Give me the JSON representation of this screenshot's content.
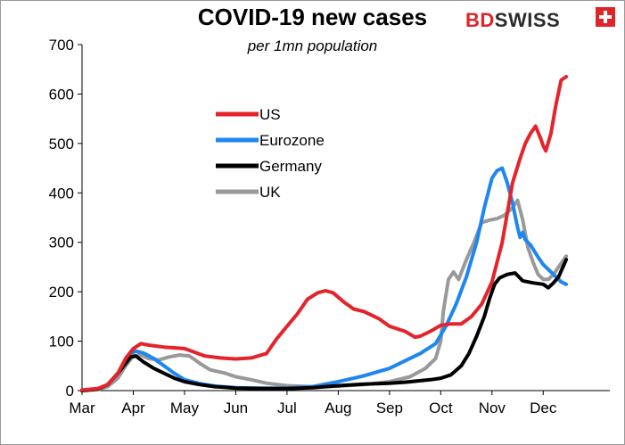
{
  "header": {
    "title": "COVID-19 new cases",
    "subtitle": "per 1mn population",
    "logo_text_1": "BD",
    "logo_text_2": "SWISS",
    "logo_mark": "swiss-cross-icon"
  },
  "colors": {
    "US": "#e4232b",
    "Eurozone": "#1d86f0",
    "Germany": "#000000",
    "UK": "#999999"
  },
  "chart_data": {
    "type": "line",
    "title": "COVID-19 new cases",
    "subtitle": "per 1mn population",
    "xlabel": "",
    "ylabel": "",
    "ylim": [
      0,
      700
    ],
    "yticks": [
      0,
      100,
      200,
      300,
      400,
      500,
      600,
      700
    ],
    "xlim": [
      0,
      10.3
    ],
    "xticks": [
      {
        "label": "Mar",
        "x": 0
      },
      {
        "label": "Apr",
        "x": 1
      },
      {
        "label": "May",
        "x": 2
      },
      {
        "label": "Jun",
        "x": 3
      },
      {
        "label": "Jul",
        "x": 4
      },
      {
        "label": "Aug",
        "x": 5
      },
      {
        "label": "Sep",
        "x": 6
      },
      {
        "label": "Oct",
        "x": 7
      },
      {
        "label": "Nov",
        "x": 8
      },
      {
        "label": "Dec",
        "x": 9
      }
    ],
    "grid": false,
    "legend": "upper-left",
    "series": [
      {
        "name": "US",
        "color": "#e4232b",
        "x": [
          0,
          0.3,
          0.5,
          0.7,
          0.85,
          1.0,
          1.15,
          1.3,
          1.6,
          2.0,
          2.4,
          2.7,
          3.0,
          3.3,
          3.6,
          3.8,
          4.0,
          4.2,
          4.4,
          4.6,
          4.75,
          4.9,
          5.1,
          5.3,
          5.5,
          5.8,
          6.0,
          6.3,
          6.5,
          6.6,
          6.8,
          7.0,
          7.2,
          7.4,
          7.6,
          7.8,
          8.0,
          8.2,
          8.4,
          8.55,
          8.65,
          8.75,
          8.85,
          8.95,
          9.0,
          9.05,
          9.15,
          9.25,
          9.35,
          9.45
        ],
        "y": [
          1,
          4,
          12,
          35,
          65,
          85,
          95,
          92,
          88,
          85,
          70,
          66,
          64,
          66,
          75,
          105,
          130,
          155,
          185,
          198,
          202,
          198,
          180,
          165,
          160,
          145,
          130,
          120,
          108,
          110,
          120,
          132,
          135,
          135,
          150,
          175,
          220,
          300,
          420,
          470,
          500,
          520,
          535,
          510,
          495,
          485,
          520,
          580,
          628,
          635
        ]
      },
      {
        "name": "Eurozone",
        "color": "#1d86f0",
        "x": [
          0,
          0.3,
          0.5,
          0.7,
          0.85,
          0.95,
          1.05,
          1.2,
          1.4,
          1.6,
          1.8,
          2.0,
          2.3,
          2.6,
          3.0,
          3.5,
          4.0,
          4.5,
          5.0,
          5.5,
          6.0,
          6.3,
          6.6,
          6.9,
          7.1,
          7.3,
          7.5,
          7.7,
          7.85,
          8.0,
          8.1,
          8.2,
          8.3,
          8.4,
          8.5,
          8.55,
          8.6,
          8.65,
          8.75,
          8.9,
          9.0,
          9.1,
          9.2,
          9.35,
          9.45
        ],
        "y": [
          0,
          3,
          12,
          35,
          60,
          75,
          80,
          76,
          65,
          50,
          35,
          22,
          14,
          9,
          6,
          5,
          5,
          8,
          18,
          30,
          45,
          60,
          75,
          95,
          130,
          175,
          230,
          300,
          370,
          430,
          445,
          450,
          420,
          380,
          330,
          310,
          320,
          305,
          295,
          270,
          255,
          245,
          235,
          220,
          215
        ]
      },
      {
        "name": "Germany",
        "color": "#000000",
        "x": [
          0,
          0.3,
          0.5,
          0.7,
          0.85,
          0.95,
          1.05,
          1.2,
          1.4,
          1.6,
          1.8,
          2.0,
          2.3,
          2.6,
          3.0,
          3.5,
          4.0,
          4.5,
          5.0,
          5.5,
          6.0,
          6.3,
          6.6,
          6.8,
          7.0,
          7.2,
          7.4,
          7.55,
          7.7,
          7.85,
          7.95,
          8.05,
          8.15,
          8.3,
          8.45,
          8.6,
          8.8,
          9.0,
          9.1,
          9.2,
          9.3,
          9.45
        ],
        "y": [
          0,
          3,
          12,
          35,
          55,
          68,
          70,
          58,
          45,
          35,
          25,
          18,
          12,
          8,
          5,
          4,
          4,
          6,
          10,
          13,
          15,
          17,
          20,
          22,
          25,
          32,
          50,
          75,
          110,
          150,
          185,
          215,
          228,
          235,
          238,
          222,
          218,
          215,
          208,
          218,
          230,
          265
        ]
      },
      {
        "name": "UK",
        "color": "#999999",
        "x": [
          0,
          0.3,
          0.5,
          0.7,
          0.85,
          1.0,
          1.15,
          1.3,
          1.5,
          1.7,
          1.9,
          2.1,
          2.3,
          2.5,
          2.8,
          3.0,
          3.3,
          3.6,
          4.0,
          4.5,
          5.0,
          5.5,
          6.0,
          6.4,
          6.7,
          6.9,
          7.0,
          7.05,
          7.15,
          7.25,
          7.35,
          7.5,
          7.65,
          7.8,
          7.95,
          8.1,
          8.25,
          8.4,
          8.5,
          8.6,
          8.7,
          8.8,
          8.9,
          9.0,
          9.1,
          9.2,
          9.3,
          9.45
        ],
        "y": [
          0,
          2,
          8,
          25,
          50,
          70,
          72,
          65,
          62,
          68,
          72,
          70,
          55,
          42,
          35,
          28,
          22,
          15,
          10,
          8,
          9,
          12,
          18,
          28,
          45,
          65,
          100,
          160,
          225,
          240,
          225,
          265,
          300,
          340,
          345,
          348,
          355,
          370,
          385,
          345,
          290,
          260,
          235,
          225,
          225,
          235,
          250,
          272
        ]
      }
    ]
  }
}
